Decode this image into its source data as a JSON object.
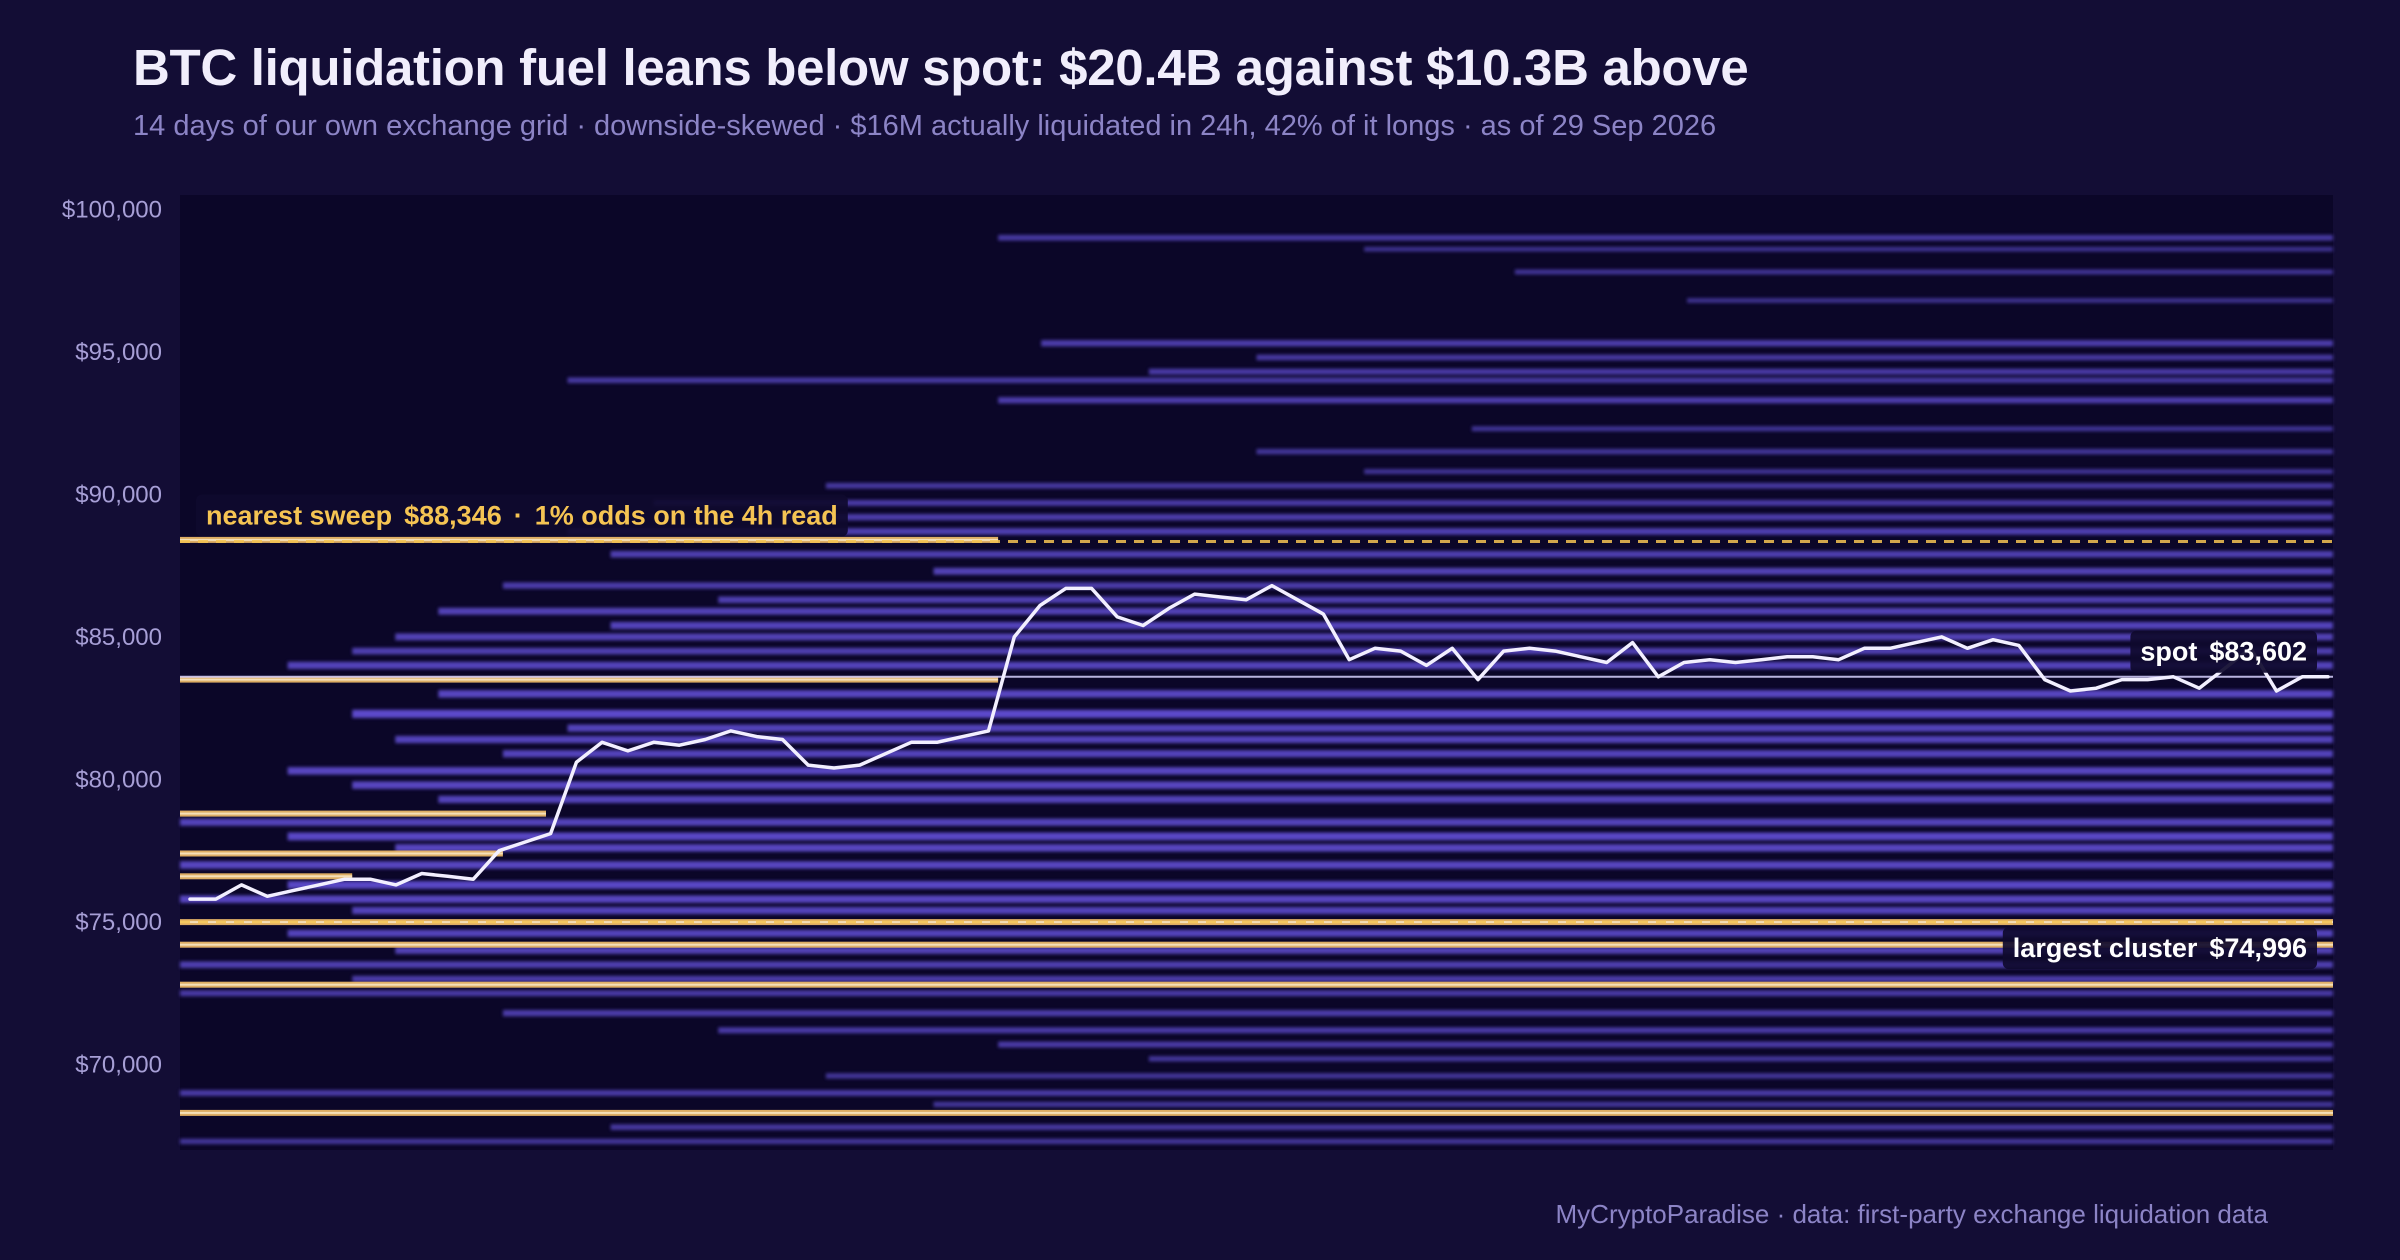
{
  "header": {
    "title": "BTC liquidation fuel leans below spot: $20.4B against $10.3B above",
    "subtitle": "14 days of our own exchange grid · downside-skewed · $16M actually liquidated in 24h, 42% of it longs · as of 29 Sep 2026"
  },
  "footer": {
    "credit": "MyCryptoParadise  ·  data: first-party exchange liquidation data"
  },
  "colors": {
    "background": "#130d35",
    "plot_background": "#0b0628",
    "band": "#6a56e6",
    "band_highlight": "#f4c06a",
    "price_line": "#f2efff",
    "sweep_label": "#f5c453",
    "label_box": "#0f0a2e"
  },
  "chart_data": {
    "type": "heatmap",
    "title": "BTC liquidation fuel leans below spot: $20.4B against $10.3B above",
    "ylim": [
      67000,
      100500
    ],
    "y_ticks": [
      70000,
      75000,
      80000,
      85000,
      90000,
      95000,
      100000
    ],
    "y_tick_labels": [
      "$70,000",
      "$75,000",
      "$80,000",
      "$85,000",
      "$90,000",
      "$95,000",
      "$100,000"
    ],
    "x_days": 14,
    "grid": false,
    "liquidation_above_spot_usd_billion": 10.3,
    "liquidation_below_spot_usd_billion": 20.4,
    "spot": {
      "label": "spot",
      "value_text": "$83,602",
      "value": 83602
    },
    "nearest_sweep": {
      "label": "nearest sweep",
      "value_text": "$88,346",
      "value": 88346,
      "note": "1% odds on the 4h read"
    },
    "largest_cluster": {
      "label": "largest cluster",
      "value_text": "$74,996",
      "value": 74996
    },
    "bands": [
      {
        "price": 99000,
        "start": 0.38,
        "intensity": 0.45
      },
      {
        "price": 98600,
        "start": 0.55,
        "intensity": 0.3
      },
      {
        "price": 97800,
        "start": 0.62,
        "intensity": 0.35
      },
      {
        "price": 96800,
        "start": 0.7,
        "intensity": 0.3
      },
      {
        "price": 95300,
        "start": 0.4,
        "intensity": 0.55
      },
      {
        "price": 94800,
        "start": 0.5,
        "intensity": 0.45
      },
      {
        "price": 94300,
        "start": 0.45,
        "intensity": 0.5
      },
      {
        "price": 94000,
        "start": 0.18,
        "intensity": 0.45
      },
      {
        "price": 93300,
        "start": 0.38,
        "intensity": 0.55
      },
      {
        "price": 92300,
        "start": 0.6,
        "intensity": 0.35
      },
      {
        "price": 91500,
        "start": 0.5,
        "intensity": 0.4
      },
      {
        "price": 90800,
        "start": 0.55,
        "intensity": 0.35
      },
      {
        "price": 90300,
        "start": 0.3,
        "intensity": 0.45
      },
      {
        "price": 89700,
        "start": 0.22,
        "intensity": 0.5
      },
      {
        "price": 89200,
        "start": 0.28,
        "intensity": 0.55
      },
      {
        "price": 88700,
        "start": 0.18,
        "intensity": 0.6
      },
      {
        "price": 87900,
        "start": 0.2,
        "intensity": 0.6
      },
      {
        "price": 87300,
        "start": 0.35,
        "intensity": 0.65
      },
      {
        "price": 86800,
        "start": 0.15,
        "intensity": 0.55
      },
      {
        "price": 86300,
        "start": 0.25,
        "intensity": 0.6
      },
      {
        "price": 85900,
        "start": 0.12,
        "intensity": 0.65
      },
      {
        "price": 85400,
        "start": 0.2,
        "intensity": 0.7
      },
      {
        "price": 85000,
        "start": 0.1,
        "intensity": 0.65
      },
      {
        "price": 84500,
        "start": 0.08,
        "intensity": 0.6
      },
      {
        "price": 84000,
        "start": 0.05,
        "intensity": 0.7
      },
      {
        "price": 83000,
        "start": 0.12,
        "intensity": 0.75
      },
      {
        "price": 82300,
        "start": 0.08,
        "intensity": 0.85
      },
      {
        "price": 81800,
        "start": 0.18,
        "intensity": 0.7
      },
      {
        "price": 81400,
        "start": 0.1,
        "intensity": 0.7
      },
      {
        "price": 80900,
        "start": 0.15,
        "intensity": 0.7
      },
      {
        "price": 80300,
        "start": 0.05,
        "intensity": 0.75
      },
      {
        "price": 79800,
        "start": 0.08,
        "intensity": 0.75
      },
      {
        "price": 79300,
        "start": 0.12,
        "intensity": 0.7
      },
      {
        "price": 78500,
        "start": 0.0,
        "intensity": 0.7
      },
      {
        "price": 78000,
        "start": 0.05,
        "intensity": 0.8
      },
      {
        "price": 77600,
        "start": 0.1,
        "intensity": 0.75
      },
      {
        "price": 77000,
        "start": 0.0,
        "intensity": 0.75
      },
      {
        "price": 76300,
        "start": 0.05,
        "intensity": 0.8
      },
      {
        "price": 75800,
        "start": 0.0,
        "intensity": 0.75
      },
      {
        "price": 75400,
        "start": 0.08,
        "intensity": 0.7
      },
      {
        "price": 74600,
        "start": 0.05,
        "intensity": 0.7
      },
      {
        "price": 74000,
        "start": 0.1,
        "intensity": 0.65
      },
      {
        "price": 73500,
        "start": 0.0,
        "intensity": 0.6
      },
      {
        "price": 73000,
        "start": 0.08,
        "intensity": 0.55
      },
      {
        "price": 72500,
        "start": 0.0,
        "intensity": 0.5
      },
      {
        "price": 71800,
        "start": 0.15,
        "intensity": 0.55
      },
      {
        "price": 71200,
        "start": 0.25,
        "intensity": 0.5
      },
      {
        "price": 70700,
        "start": 0.38,
        "intensity": 0.5
      },
      {
        "price": 70200,
        "start": 0.45,
        "intensity": 0.4
      },
      {
        "price": 69600,
        "start": 0.3,
        "intensity": 0.4
      },
      {
        "price": 69000,
        "start": 0.0,
        "intensity": 0.5
      },
      {
        "price": 68600,
        "start": 0.35,
        "intensity": 0.4
      },
      {
        "price": 67800,
        "start": 0.2,
        "intensity": 0.45
      },
      {
        "price": 67300,
        "start": 0.0,
        "intensity": 0.4
      }
    ],
    "highlight_bands": [
      {
        "price": 88400,
        "start": 0.0,
        "end": 0.38
      },
      {
        "price": 83500,
        "start": 0.0,
        "end": 0.38
      },
      {
        "price": 78800,
        "start": 0.0,
        "end": 0.17
      },
      {
        "price": 77400,
        "start": 0.0,
        "end": 0.15
      },
      {
        "price": 76600,
        "start": 0.0,
        "end": 0.08
      },
      {
        "price": 74996,
        "start": 0.0,
        "end": 1.0
      },
      {
        "price": 74200,
        "start": 0.0,
        "end": 1.0
      },
      {
        "price": 72800,
        "start": 0.0,
        "end": 1.0
      },
      {
        "price": 68300,
        "start": 0.0,
        "end": 1.0
      }
    ],
    "price_series": [
      75800,
      75800,
      76300,
      75900,
      76100,
      76300,
      76500,
      76500,
      76300,
      76700,
      76600,
      76500,
      77500,
      77800,
      78100,
      80600,
      81300,
      81000,
      81300,
      81200,
      81400,
      81700,
      81500,
      81400,
      80500,
      80400,
      80500,
      80900,
      81300,
      81300,
      81500,
      81700,
      85000,
      86100,
      86700,
      86700,
      85700,
      85400,
      86000,
      86500,
      86400,
      86300,
      86800,
      86300,
      85800,
      84200,
      84600,
      84500,
      84000,
      84600,
      83500,
      84500,
      84600,
      84500,
      84300,
      84100,
      84800,
      83600,
      84100,
      84200,
      84100,
      84200,
      84300,
      84300,
      84200,
      84600,
      84600,
      84800,
      85000,
      84600,
      84900,
      84700,
      83500,
      83100,
      83200,
      83500,
      83500,
      83600,
      83200,
      83900,
      84600,
      83100,
      83600,
      83600
    ]
  }
}
